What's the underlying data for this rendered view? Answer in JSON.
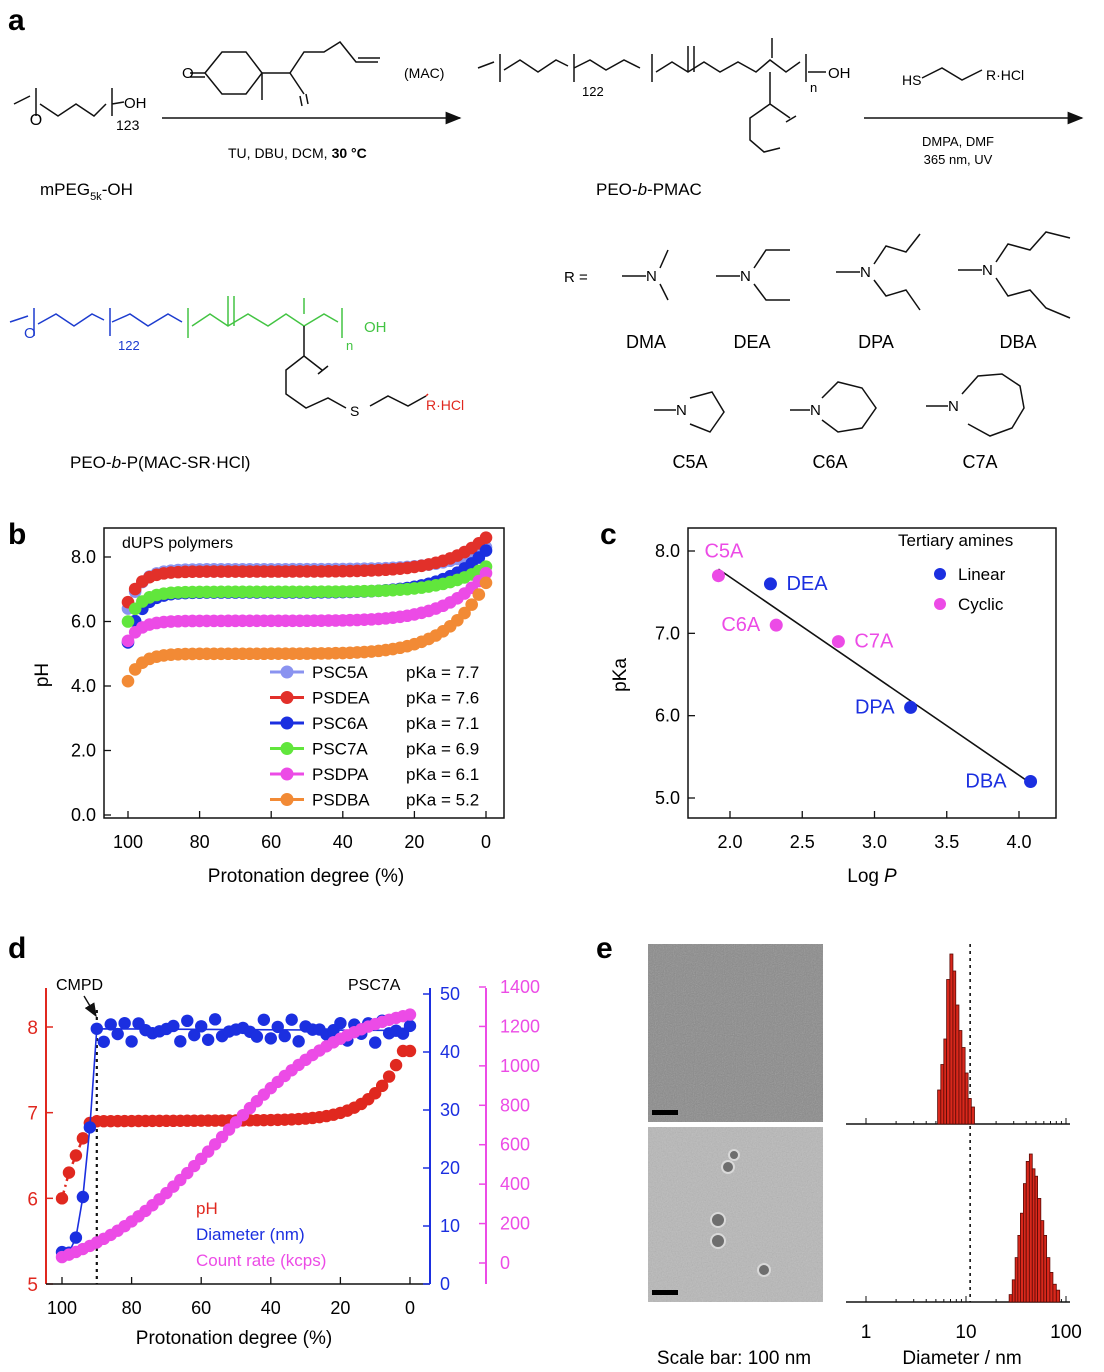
{
  "colors": {
    "PSC5A": "#8a93f0",
    "PSDEA": "#e2302a",
    "PSC6A": "#1b2fe0",
    "PSC7A": "#61e63c",
    "PSDPA": "#ec4be6",
    "PSDBA": "#f28a35",
    "linear": "#1b2fe0",
    "cyclic": "#ec4be6",
    "peg_blue": "#1d3ccf",
    "pmac_green": "#43c443",
    "r_red": "#e0281f"
  },
  "panel_a": {
    "label": "a",
    "mpeg_subscript": "123",
    "mpeg_oh": "OH",
    "mpeg_name": "mPEG",
    "mpeg_name_sub": "5k",
    "mpeg_name_end": "-OH",
    "mac_label": "(MAC)",
    "step1_conditions": "TU, DBU, DCM,",
    "step1_temp": "30 °C",
    "peo_subscript": "122",
    "n_subscript": "n",
    "oh": "OH",
    "product1_name_a": "PEO-",
    "product1_name_b": "b",
    "product1_name_c": "-PMAC",
    "thiol_hs": "HS",
    "thiol_r": "R·HCl",
    "step2_conditions_1": "DMPA, DMF",
    "step2_conditions_2": "365 nm, UV",
    "r_equals": "R =",
    "product2_name_a": "PEO-",
    "product2_name_b": "b",
    "product2_name_c": "-P(MAC-SR·HCl)",
    "product2_s": "S",
    "product2_r": "R·HCl",
    "atom_o": "O",
    "atom_n": "N",
    "amines": [
      "DMA",
      "DEA",
      "DPA",
      "DBA",
      "C5A",
      "C6A",
      "C7A"
    ]
  },
  "panel_b": {
    "label": "b",
    "title": "dUPS polymers",
    "xlabel": "Protonation degree (%)",
    "ylabel": "pH",
    "legend_names": [
      "PSC5A",
      "PSDEA",
      "PSC6A",
      "PSC7A",
      "PSDPA",
      "PSDBA"
    ],
    "legend_pka": [
      "pKa = 7.7",
      "pKa = 7.6",
      "pKa = 7.1",
      "pKa = 6.9",
      "pKa = 6.1",
      "pKa = 5.2"
    ],
    "xticks": [
      "100",
      "80",
      "60",
      "40",
      "20",
      "0"
    ],
    "yticks": [
      "0.0",
      "2.0",
      "4.0",
      "6.0",
      "8.0"
    ]
  },
  "panel_c": {
    "label": "c",
    "xlabel": "Log",
    "xlabel_italic": "P",
    "ylabel": "pKa",
    "legend_title": "Tertiary amines",
    "legend_linear": "Linear",
    "legend_cyclic": "Cyclic",
    "xticks": [
      "2.0",
      "2.5",
      "3.0",
      "3.5",
      "4.0"
    ],
    "yticks": [
      "5.0",
      "6.0",
      "7.0",
      "8.0"
    ]
  },
  "panel_d": {
    "label": "d",
    "cmpd": "CMPD",
    "polymer": "PSC7A",
    "xlabel": "Protonation degree (%)",
    "legend_ph": "pH",
    "legend_diameter": "Diameter (nm)",
    "legend_count": "Count rate (kcps)",
    "xticks": [
      "100",
      "80",
      "60",
      "40",
      "20",
      "0"
    ],
    "y_ph_ticks": [
      "5",
      "6",
      "7",
      "8"
    ],
    "y_diam_ticks": [
      "0",
      "10",
      "20",
      "30",
      "40",
      "50"
    ],
    "y_count_ticks": [
      "0",
      "200",
      "400",
      "600",
      "800",
      "1000",
      "1200",
      "1400"
    ]
  },
  "panel_e": {
    "label": "e",
    "scale_bar_caption": "Scale bar: 100 nm",
    "xlabel": "Diameter / nm",
    "xticks": [
      "1",
      "10",
      "100"
    ]
  },
  "chart_data": [
    {
      "type": "line",
      "panel": "b",
      "title": "dUPS polymers",
      "xlabel": "Protonation degree (%)",
      "ylabel": "pH",
      "xlim": [
        100,
        0
      ],
      "ylim": [
        0,
        8.7
      ],
      "legend": "bottom-right",
      "series": [
        {
          "name": "PSC5A",
          "pka": 7.7,
          "start": 6.4,
          "plateau": 7.62,
          "end": 8.3
        },
        {
          "name": "PSDEA",
          "pka": 7.6,
          "start": 6.6,
          "plateau": 7.55,
          "end": 8.6
        },
        {
          "name": "PSC6A",
          "pka": 7.1,
          "start": 5.35,
          "plateau": 6.9,
          "end": 8.2
        },
        {
          "name": "PSC7A",
          "pka": 6.9,
          "start": 6.0,
          "plateau": 6.92,
          "end": 7.7
        },
        {
          "name": "PSDPA",
          "pka": 6.1,
          "start": 5.4,
          "plateau": 6.02,
          "end": 7.5
        },
        {
          "name": "PSDBA",
          "pka": 5.2,
          "start": 4.15,
          "plateau": 5.0,
          "end": 7.2
        }
      ]
    },
    {
      "type": "scatter",
      "panel": "c",
      "xlabel": "Log P",
      "ylabel": "pKa",
      "xlim": [
        1.75,
        4.2
      ],
      "ylim": [
        4.8,
        8.25
      ],
      "legend": "top-right",
      "points": [
        {
          "label": "C5A",
          "x": 1.92,
          "y": 7.7,
          "group": "Cyclic"
        },
        {
          "label": "DEA",
          "x": 2.28,
          "y": 7.6,
          "group": "Linear"
        },
        {
          "label": "C6A",
          "x": 2.32,
          "y": 7.1,
          "group": "Cyclic"
        },
        {
          "label": "C7A",
          "x": 2.75,
          "y": 6.9,
          "group": "Cyclic"
        },
        {
          "label": "DPA",
          "x": 3.25,
          "y": 6.1,
          "group": "Linear"
        },
        {
          "label": "DBA",
          "x": 4.08,
          "y": 5.2,
          "group": "Linear"
        }
      ],
      "fit_line": {
        "x": [
          1.92,
          4.08
        ],
        "y": [
          7.78,
          5.18
        ]
      }
    },
    {
      "type": "scatter",
      "panel": "d",
      "title": "PSC7A",
      "xlabel": "Protonation degree (%)",
      "xlim": [
        103,
        -2
      ],
      "cmpd_x": 90,
      "series": [
        {
          "name": "pH",
          "axis": "left",
          "ylim": [
            5,
            8.5
          ],
          "x": [
            100,
            98,
            96,
            94,
            92,
            90
          ],
          "y": [
            6.0,
            6.3,
            6.5,
            6.7,
            6.88,
            6.9
          ],
          "plateau": 6.9,
          "end": 7.72
        },
        {
          "name": "Diameter (nm)",
          "axis": "right",
          "ylim": [
            0,
            51
          ],
          "x": [
            100,
            98,
            96,
            94,
            92,
            90
          ],
          "y": [
            5.5,
            5.4,
            8.0,
            15.0,
            27.0,
            44.0
          ],
          "plateau": 43.7
        },
        {
          "name": "Count rate (kcps)",
          "axis": "right2",
          "ylim": [
            -80,
            1400
          ],
          "start": 30,
          "end": 1260
        }
      ]
    },
    {
      "type": "bar",
      "panel": "e",
      "xlabel": "Diameter / nm",
      "xscale": "log",
      "xlim": [
        0.7,
        150
      ],
      "reference_line": 11,
      "histograms": [
        {
          "bins": [
            5.2,
            5.6,
            6.0,
            6.4,
            6.9,
            7.4,
            7.9,
            8.5,
            9.1,
            9.8,
            10.5,
            11.3
          ],
          "counts": [
            0.2,
            0.35,
            0.5,
            0.85,
            1.0,
            0.9,
            0.7,
            0.55,
            0.45,
            0.3,
            0.15,
            0.1
          ]
        },
        {
          "bins": [
            27,
            29,
            31,
            33,
            35,
            37.5,
            40,
            43,
            46,
            49,
            52,
            56,
            60,
            64,
            69,
            74,
            80
          ],
          "counts": [
            0.05,
            0.15,
            0.3,
            0.45,
            0.6,
            0.8,
            0.95,
            1.0,
            0.9,
            0.85,
            0.7,
            0.55,
            0.45,
            0.3,
            0.2,
            0.12,
            0.08
          ]
        }
      ]
    }
  ]
}
